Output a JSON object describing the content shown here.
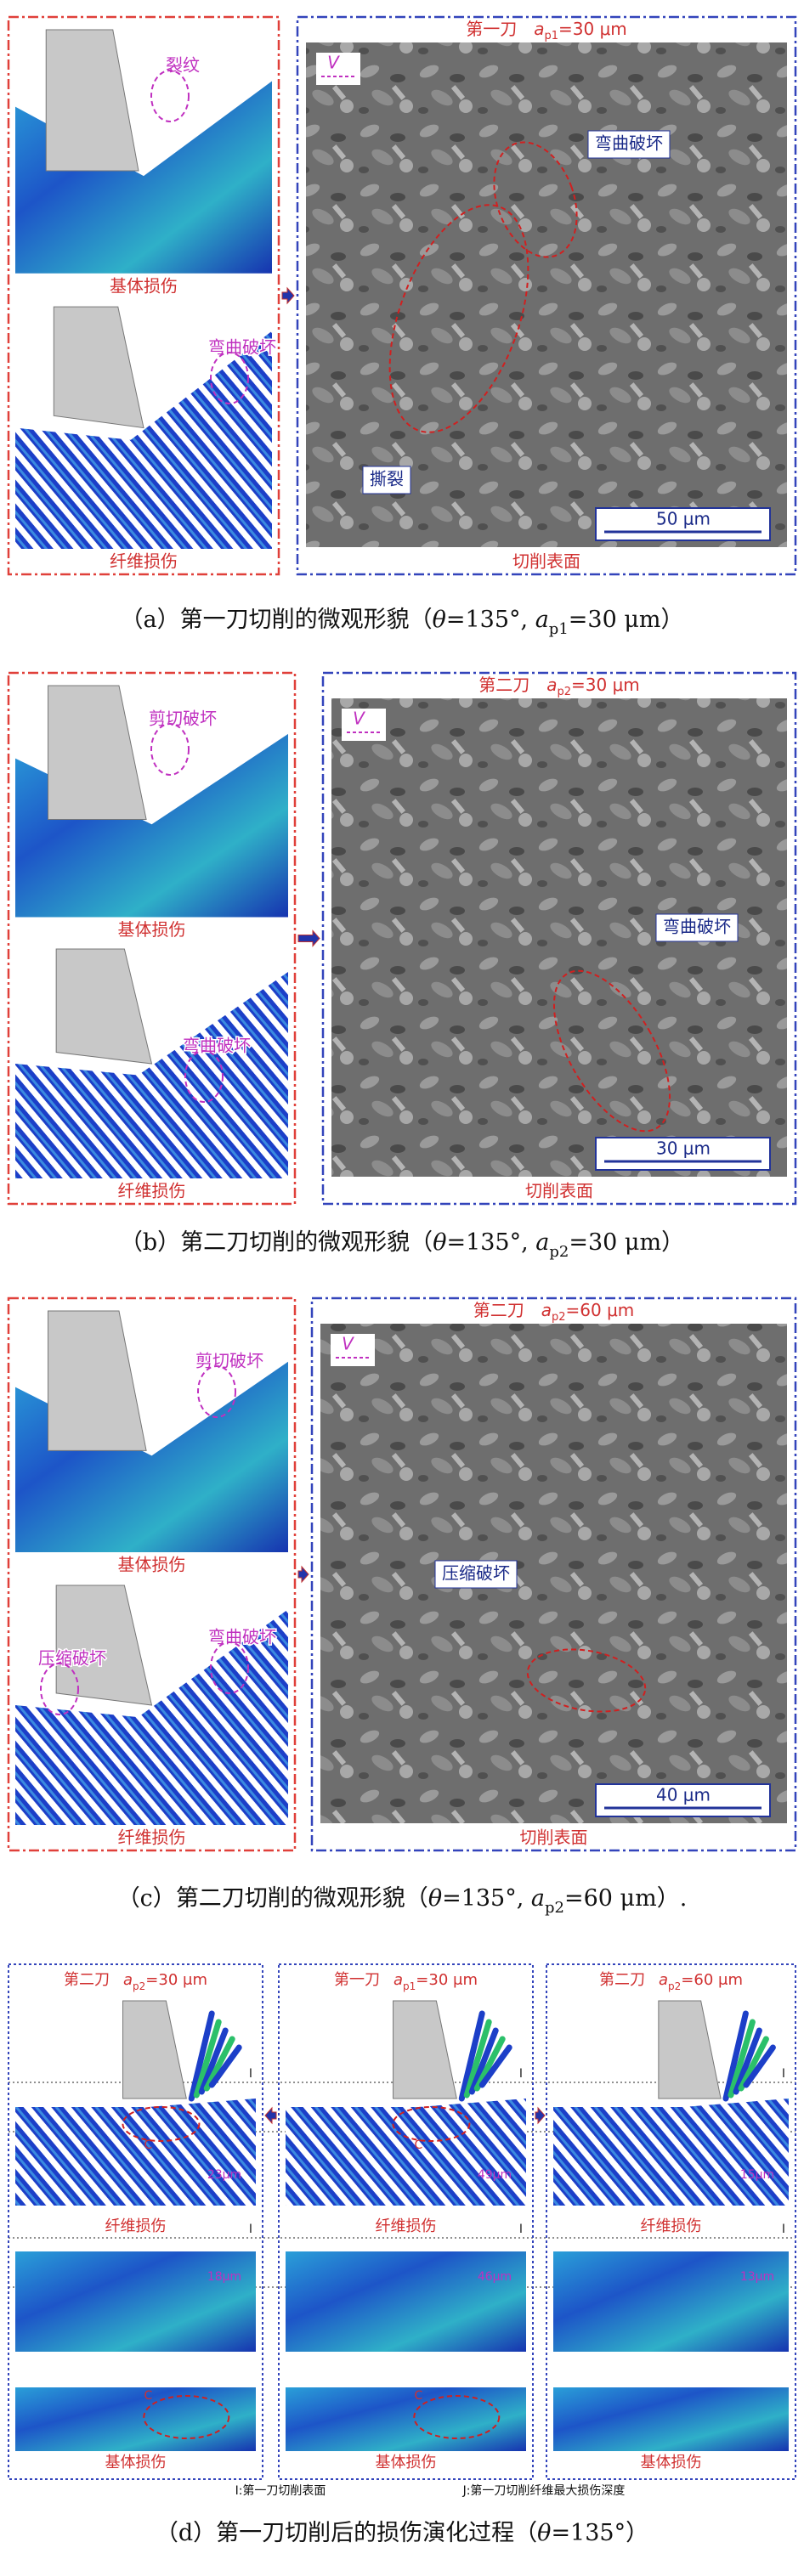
{
  "panels": [
    {
      "matrix_label": "基体损伤",
      "fiber_label": "纤维损伤",
      "sim_annotations": [
        "裂纹",
        "弯曲破坏"
      ],
      "sem": {
        "pass": "第一刀",
        "symbol": "a",
        "subscript": "p1",
        "value": "=30 μm",
        "velocity": "V",
        "annotations": [
          "弯曲破坏",
          "撕裂"
        ],
        "scale_bar": "50 μm",
        "surface": "切削表面"
      },
      "caption": {
        "label": "（a）",
        "text": "第一刀切削的微观形貌（",
        "theta": "θ",
        "angle": "=135°, ",
        "symbol": "a",
        "subscript": "p1",
        "depth": "=30 μm）"
      }
    },
    {
      "matrix_label": "基体损伤",
      "fiber_label": "纤维损伤",
      "sim_annotations": [
        "剪切破坏",
        "弯曲破坏"
      ],
      "sem": {
        "pass": "第二刀",
        "symbol": "a",
        "subscript": "p2",
        "value": "=30 μm",
        "velocity": "V",
        "annotations": [
          "弯曲破坏"
        ],
        "scale_bar": "30 μm",
        "surface": "切削表面"
      },
      "caption": {
        "label": "（b）",
        "text": "第二刀切削的微观形貌（",
        "theta": "θ",
        "angle": "=135°, ",
        "symbol": "a",
        "subscript": "p2",
        "depth": "=30 μm）"
      }
    },
    {
      "matrix_label": "基体损伤",
      "fiber_label": "纤维损伤",
      "sim_annotations": [
        "剪切破坏",
        "压缩破坏",
        "弯曲破坏"
      ],
      "sem": {
        "pass": "第二刀",
        "symbol": "a",
        "subscript": "p2",
        "value": "=60 μm",
        "velocity": "V",
        "annotations": [
          "压缩破坏"
        ],
        "scale_bar": "40 μm",
        "surface": "切削表面"
      },
      "caption": {
        "label": "（c）",
        "text": "第二刀切削的微观形貌（",
        "theta": "θ",
        "angle": "=135°, ",
        "symbol": "a",
        "subscript": "p2",
        "depth": "=60 μm）."
      }
    }
  ],
  "evolution": {
    "columns": [
      {
        "pass": "第二刀",
        "symbol": "a",
        "subscript": "p2",
        "value": "=30 μm",
        "fiber_label": "纤维损伤",
        "fiber_depth": "23μm",
        "matrix_depth": "18μm",
        "matrix_label": "基体损伤"
      },
      {
        "pass": "第一刀",
        "symbol": "a",
        "subscript": "p1",
        "value": "=30 μm",
        "fiber_label": "纤维损伤",
        "fiber_depth": "49μm",
        "matrix_depth": "46μm",
        "matrix_label": "基体损伤"
      },
      {
        "pass": "第二刀",
        "symbol": "a",
        "subscript": "p2",
        "value": "=60 μm",
        "fiber_label": "纤维损伤",
        "fiber_depth": "15μm",
        "matrix_depth": "13μm",
        "matrix_label": "基体损伤"
      }
    ],
    "markers": [
      "I",
      "J"
    ],
    "crack_marker": "C",
    "legend": [
      "I:第一刀切削表面",
      "J:第一刀切削纤维最大损伤深度"
    ],
    "caption": {
      "label": "（d）",
      "text": "第一刀切削后的损伤演化过程（",
      "theta": "θ",
      "angle": "=135°）"
    }
  }
}
